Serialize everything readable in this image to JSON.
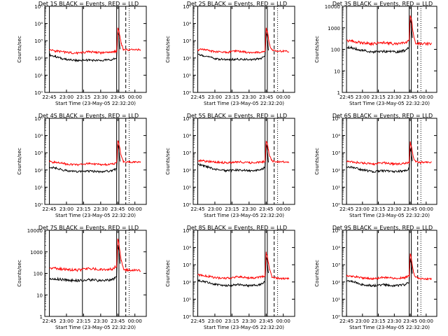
{
  "layout": {
    "rows": 3,
    "cols": 3
  },
  "colors": {
    "events": "#000000",
    "lld": "#ff0000",
    "axes": "#000000"
  },
  "common": {
    "x_tick_labels": [
      "22:45",
      "23:00",
      "23:15",
      "23:30",
      "23:45",
      "00:00"
    ],
    "xlabel": "Start Time (23-May-05 22:32:20)",
    "ylabel": "Counts/sec"
  },
  "chart_data": [
    {
      "type": "line",
      "title": "Det 1S BLACK = Events, RED = LLD",
      "ylog": true,
      "ylim": [
        1,
        100000
      ],
      "ytick_labels": [
        "10⁰",
        "10¹",
        "10²",
        "10³",
        "10⁴",
        "10⁵"
      ],
      "x": [
        "22:45",
        "22:50",
        "23:00",
        "23:10",
        "23:20",
        "23:30",
        "23:40",
        "23:44",
        "23:45",
        "23:46",
        "23:47",
        "23:48",
        "23:50",
        "23:55",
        "00:00",
        "00:05"
      ],
      "series": [
        {
          "name": "Events",
          "values": [
            150,
            120,
            80,
            70,
            75,
            70,
            80,
            100,
            3000,
            2000,
            300,
            null,
            null,
            null,
            null,
            null
          ]
        },
        {
          "name": "LLD",
          "values": [
            300,
            260,
            210,
            190,
            230,
            200,
            210,
            250,
            5000,
            4000,
            1500,
            700,
            300,
            300,
            300,
            300
          ]
        }
      ]
    },
    {
      "type": "line",
      "title": "Det 2S BLACK = Events, RED = LLD",
      "ylog": true,
      "ylim": [
        1,
        100000
      ],
      "ytick_labels": [
        "10⁰",
        "10¹",
        "10²",
        "10³",
        "10⁴",
        "10⁵"
      ],
      "x": [
        "22:45",
        "22:50",
        "23:00",
        "23:10",
        "23:20",
        "23:30",
        "23:40",
        "23:44",
        "23:45",
        "23:46",
        "23:47",
        "23:48",
        "23:50",
        "23:55",
        "00:00",
        "00:05"
      ],
      "series": [
        {
          "name": "Events",
          "values": [
            150,
            140,
            90,
            80,
            85,
            80,
            90,
            120,
            3000,
            1500,
            300,
            null,
            null,
            null,
            null,
            null
          ]
        },
        {
          "name": "LLD",
          "values": [
            300,
            300,
            230,
            210,
            250,
            210,
            220,
            260,
            5000,
            3500,
            1500,
            600,
            300,
            250,
            250,
            250
          ]
        }
      ]
    },
    {
      "type": "line",
      "title": "Det 3S BLACK = Events, RED = LLD",
      "ylog": true,
      "ylim": [
        1,
        10000
      ],
      "ytick_labels": [
        "1",
        "10",
        "100",
        "1000",
        "10000"
      ],
      "x": [
        "22:45",
        "22:50",
        "23:00",
        "23:10",
        "23:20",
        "23:30",
        "23:40",
        "23:44",
        "23:45",
        "23:46",
        "23:47",
        "23:48",
        "23:50",
        "23:55",
        "00:00",
        "00:05"
      ],
      "series": [
        {
          "name": "Events",
          "values": [
            130,
            120,
            90,
            75,
            80,
            75,
            90,
            120,
            2500,
            1500,
            300,
            null,
            null,
            null,
            null,
            null
          ]
        },
        {
          "name": "LLD",
          "values": [
            250,
            240,
            200,
            180,
            210,
            180,
            200,
            250,
            4000,
            3000,
            1200,
            500,
            200,
            180,
            180,
            180
          ]
        }
      ]
    },
    {
      "type": "line",
      "title": "Det 4S BLACK = Events, RED = LLD",
      "ylog": true,
      "ylim": [
        1,
        100000
      ],
      "ytick_labels": [
        "10⁰",
        "10¹",
        "10²",
        "10³",
        "10⁴",
        "10⁵"
      ],
      "x": [
        "22:45",
        "22:50",
        "23:00",
        "23:10",
        "23:20",
        "23:30",
        "23:40",
        "23:44",
        "23:45",
        "23:46",
        "23:47",
        "23:48",
        "23:50",
        "23:55",
        "00:00",
        "00:05"
      ],
      "series": [
        {
          "name": "Events",
          "values": [
            150,
            130,
            90,
            80,
            85,
            80,
            90,
            120,
            3000,
            1500,
            300,
            null,
            null,
            null,
            null,
            null
          ]
        },
        {
          "name": "LLD",
          "values": [
            300,
            280,
            220,
            200,
            240,
            200,
            220,
            260,
            5000,
            3500,
            1500,
            600,
            300,
            280,
            280,
            280
          ]
        }
      ]
    },
    {
      "type": "line",
      "title": "Det 5S BLACK = Events, RED = LLD",
      "ylog": true,
      "ylim": [
        1,
        100000
      ],
      "ytick_labels": [
        "10⁰",
        "10¹",
        "10²",
        "10³",
        "10⁴",
        "10⁵"
      ],
      "x": [
        "22:45",
        "22:50",
        "23:00",
        "23:10",
        "23:20",
        "23:30",
        "23:40",
        "23:44",
        "23:45",
        "23:46",
        "23:47",
        "23:48",
        "23:50",
        "23:55",
        "00:00",
        "00:05"
      ],
      "series": [
        {
          "name": "Events",
          "values": [
            200,
            180,
            110,
            90,
            100,
            90,
            100,
            140,
            3000,
            1500,
            300,
            null,
            null,
            null,
            null,
            null
          ]
        },
        {
          "name": "LLD",
          "values": [
            350,
            330,
            280,
            260,
            300,
            260,
            280,
            320,
            5000,
            3000,
            1500,
            600,
            330,
            300,
            300,
            300
          ]
        }
      ]
    },
    {
      "type": "line",
      "title": "Det 6S BLACK = Events, RED = LLD",
      "ylog": true,
      "ylim": [
        1,
        100000
      ],
      "ytick_labels": [
        "10⁰",
        "10¹",
        "10²",
        "10³",
        "10⁴",
        "10⁵"
      ],
      "x": [
        "22:45",
        "22:50",
        "23:00",
        "23:10",
        "23:20",
        "23:30",
        "23:40",
        "23:44",
        "23:45",
        "23:46",
        "23:47",
        "23:48",
        "23:50",
        "23:55",
        "00:00",
        "00:05"
      ],
      "series": [
        {
          "name": "Events",
          "values": [
            150,
            140,
            100,
            80,
            90,
            80,
            90,
            120,
            2000,
            1000,
            300,
            null,
            null,
            null,
            null,
            null
          ]
        },
        {
          "name": "LLD",
          "values": [
            300,
            300,
            250,
            220,
            260,
            220,
            240,
            280,
            4000,
            2500,
            1200,
            500,
            300,
            280,
            280,
            280
          ]
        }
      ]
    },
    {
      "type": "line",
      "title": "Det 7S BLACK = Events, RED = LLD",
      "ylog": true,
      "ylim": [
        1,
        10000
      ],
      "ytick_labels": [
        "1",
        "10",
        "100",
        "1000",
        "10000"
      ],
      "x": [
        "22:45",
        "22:50",
        "23:00",
        "23:10",
        "23:20",
        "23:30",
        "23:40",
        "23:44",
        "23:45",
        "23:46",
        "23:47",
        "23:48",
        "23:50",
        "23:55",
        "00:00",
        "00:05"
      ],
      "series": [
        {
          "name": "Events",
          "values": [
            60,
            55,
            50,
            45,
            50,
            45,
            50,
            70,
            2000,
            1200,
            300,
            null,
            null,
            null,
            null,
            null
          ]
        },
        {
          "name": "LLD",
          "values": [
            180,
            170,
            150,
            140,
            170,
            150,
            160,
            220,
            4000,
            2500,
            1000,
            400,
            150,
            140,
            140,
            140
          ]
        }
      ]
    },
    {
      "type": "line",
      "title": "Det 8S BLACK = Events, RED = LLD",
      "ylog": true,
      "ylim": [
        1,
        100000
      ],
      "ytick_labels": [
        "10⁰",
        "10¹",
        "10²",
        "10³",
        "10⁴",
        "10⁵"
      ],
      "x": [
        "22:45",
        "22:50",
        "23:00",
        "23:10",
        "23:20",
        "23:30",
        "23:40",
        "23:44",
        "23:45",
        "23:46",
        "23:47",
        "23:48",
        "23:50",
        "23:55",
        "00:00",
        "00:05"
      ],
      "series": [
        {
          "name": "Events",
          "values": [
            120,
            110,
            70,
            60,
            70,
            60,
            70,
            100,
            3000,
            1500,
            300,
            null,
            null,
            null,
            null,
            null
          ]
        },
        {
          "name": "LLD",
          "values": [
            250,
            240,
            180,
            160,
            200,
            170,
            190,
            230,
            5000,
            3000,
            1200,
            500,
            200,
            160,
            160,
            160
          ]
        }
      ]
    },
    {
      "type": "line",
      "title": "Det 9S BLACK = Events, RED = LLD",
      "ylog": true,
      "ylim": [
        1,
        100000
      ],
      "ytick_labels": [
        "10⁰",
        "10¹",
        "10²",
        "10³",
        "10⁴",
        "10⁵"
      ],
      "x": [
        "22:45",
        "22:50",
        "23:00",
        "23:10",
        "23:20",
        "23:30",
        "23:40",
        "23:44",
        "23:45",
        "23:46",
        "23:47",
        "23:48",
        "23:50",
        "23:55",
        "00:00",
        "00:05"
      ],
      "series": [
        {
          "name": "Events",
          "values": [
            120,
            110,
            70,
            60,
            70,
            60,
            70,
            100,
            2500,
            1200,
            300,
            null,
            null,
            null,
            null,
            null
          ]
        },
        {
          "name": "LLD",
          "values": [
            230,
            220,
            170,
            150,
            190,
            160,
            180,
            220,
            4500,
            2500,
            1000,
            400,
            180,
            150,
            150,
            150
          ]
        }
      ]
    }
  ]
}
